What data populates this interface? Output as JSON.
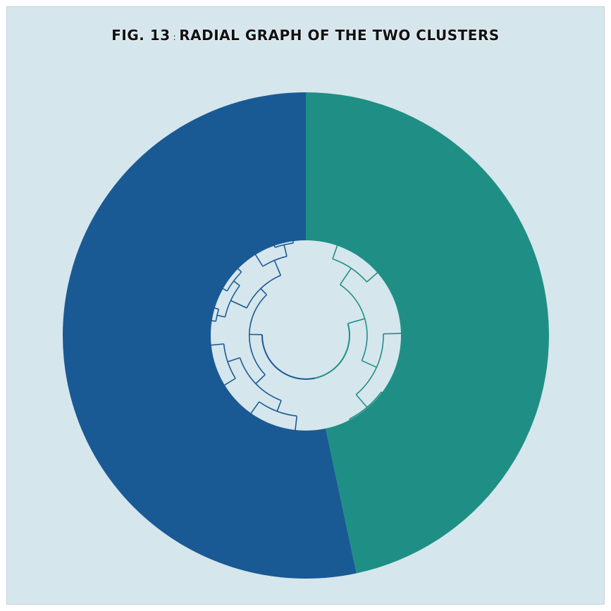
{
  "figure": {
    "label": "FIG. 13",
    "separator": ":",
    "title": "RADIAL GRAPH OF THE TWO CLUSTERS"
  },
  "clusters": [
    {
      "color": "#1a5a94"
    },
    {
      "color": "#1f8f85"
    }
  ],
  "colors": {
    "background": "#d6e6ed",
    "frame_border": "#c3d4dc",
    "title_text": "#111111"
  }
}
